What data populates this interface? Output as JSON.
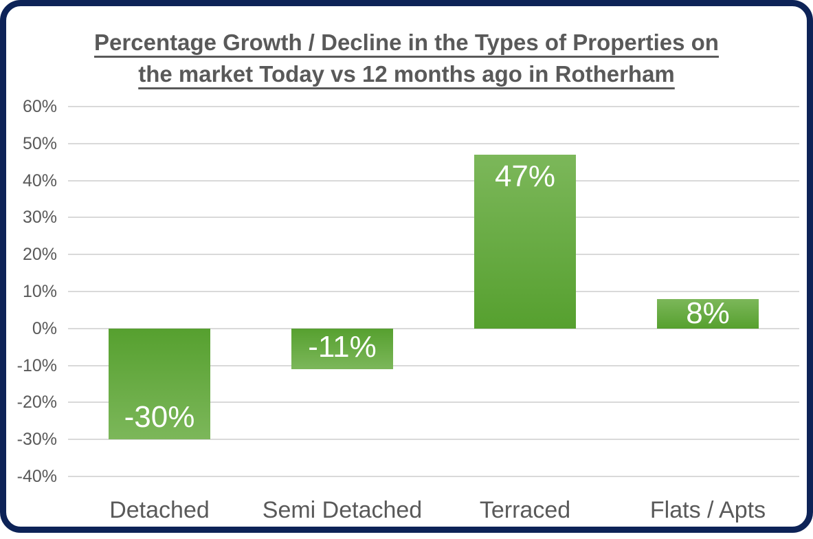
{
  "frame": {
    "border_color": "#0d2357",
    "background_color": "#ffffff"
  },
  "title": {
    "lines": [
      "Percentage Growth / Decline in the Types of Properties on",
      "the market Today vs 12 months ago in Rotherham"
    ],
    "color": "#595959"
  },
  "chart_data": {
    "type": "bar",
    "title": "Percentage Growth / Decline in the Types of Properties on the market Today vs 12 months ago in Rotherham",
    "categories": [
      "Detached",
      "Semi Detached",
      "Terraced",
      "Flats / Apts"
    ],
    "values": [
      -30,
      -11,
      47,
      8
    ],
    "data_labels": [
      "-30%",
      "-11%",
      "47%",
      "8%"
    ],
    "xlabel": "",
    "ylabel": "",
    "ylim": [
      -40,
      60
    ],
    "yticks": [
      {
        "value": 60,
        "label": "60%"
      },
      {
        "value": 50,
        "label": "50%"
      },
      {
        "value": 40,
        "label": "40%"
      },
      {
        "value": 30,
        "label": "30%"
      },
      {
        "value": 20,
        "label": "20%"
      },
      {
        "value": 10,
        "label": "10%"
      },
      {
        "value": 0,
        "label": "0%"
      },
      {
        "value": -10,
        "label": "-10%"
      },
      {
        "value": -20,
        "label": "-20%"
      },
      {
        "value": -30,
        "label": "-30%"
      },
      {
        "value": -40,
        "label": "-40%"
      }
    ],
    "grid": true,
    "legend": false,
    "colors": {
      "bar_gradient_light": "#7cb75a",
      "bar_gradient_dark": "#56a02f",
      "gridline": "#d9d9d9",
      "tick_label": "#595959",
      "category_label": "#595959",
      "data_label": "#ffffff"
    }
  }
}
